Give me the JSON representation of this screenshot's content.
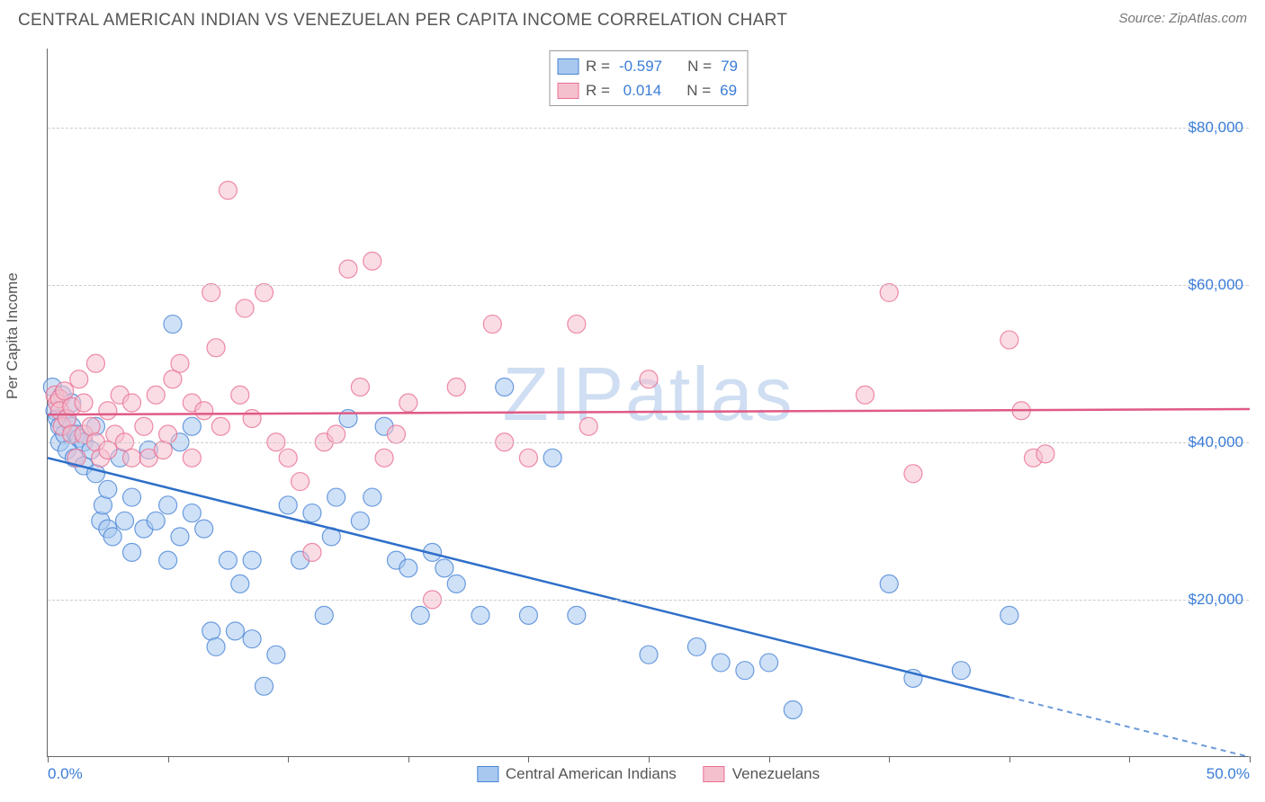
{
  "title": "CENTRAL AMERICAN INDIAN VS VENEZUELAN PER CAPITA INCOME CORRELATION CHART",
  "source": "Source: ZipAtlas.com",
  "ylabel": "Per Capita Income",
  "watermark": "ZIPatlas",
  "chart": {
    "type": "scatter",
    "xlim": [
      0,
      50
    ],
    "ylim": [
      0,
      90000
    ],
    "xtick_positions": [
      0,
      5,
      10,
      15,
      20,
      25,
      30,
      35,
      40,
      45,
      50
    ],
    "xtick_labels": {
      "0": "0.0%",
      "50": "50.0%"
    },
    "ytick_positions": [
      20000,
      40000,
      60000,
      80000
    ],
    "ytick_labels": [
      "$20,000",
      "$40,000",
      "$60,000",
      "$80,000"
    ],
    "background": "#ffffff",
    "grid_color": "#cccccc",
    "axis_color": "#666666",
    "label_color": "#3b7dd8",
    "marker_radius": 10,
    "marker_opacity": 0.55,
    "series": [
      {
        "name": "Central American Indians",
        "fill": "#a8c8f0",
        "stroke": "#4a85d6",
        "line_color": "#2e6fc9",
        "r": -0.597,
        "n": 79,
        "trend": {
          "x1": 0,
          "y1": 38000,
          "x2": 50,
          "y2": 0,
          "solid_until_x": 40
        },
        "points": [
          [
            0.2,
            47000
          ],
          [
            0.3,
            44000
          ],
          [
            0.4,
            43000
          ],
          [
            0.5,
            42000
          ],
          [
            0.5,
            40000
          ],
          [
            0.6,
            46000
          ],
          [
            0.7,
            41000
          ],
          [
            0.8,
            39000
          ],
          [
            0.8,
            43000
          ],
          [
            1.0,
            42000
          ],
          [
            1.0,
            45000
          ],
          [
            1.1,
            38000
          ],
          [
            1.2,
            41000
          ],
          [
            1.3,
            40500
          ],
          [
            1.5,
            40000
          ],
          [
            1.5,
            37000
          ],
          [
            1.8,
            39000
          ],
          [
            2.0,
            36000
          ],
          [
            2.0,
            42000
          ],
          [
            2.2,
            30000
          ],
          [
            2.3,
            32000
          ],
          [
            2.5,
            34000
          ],
          [
            2.5,
            29000
          ],
          [
            2.7,
            28000
          ],
          [
            3.0,
            38000
          ],
          [
            3.2,
            30000
          ],
          [
            3.5,
            33000
          ],
          [
            3.5,
            26000
          ],
          [
            4.0,
            29000
          ],
          [
            4.2,
            39000
          ],
          [
            4.5,
            30000
          ],
          [
            5.0,
            32000
          ],
          [
            5.0,
            25000
          ],
          [
            5.2,
            55000
          ],
          [
            5.5,
            40000
          ],
          [
            5.5,
            28000
          ],
          [
            6.0,
            31000
          ],
          [
            6.0,
            42000
          ],
          [
            6.5,
            29000
          ],
          [
            6.8,
            16000
          ],
          [
            7.0,
            14000
          ],
          [
            7.5,
            25000
          ],
          [
            7.8,
            16000
          ],
          [
            8.0,
            22000
          ],
          [
            8.5,
            25000
          ],
          [
            8.5,
            15000
          ],
          [
            9.0,
            9000
          ],
          [
            9.5,
            13000
          ],
          [
            10.0,
            32000
          ],
          [
            10.5,
            25000
          ],
          [
            11.0,
            31000
          ],
          [
            11.5,
            18000
          ],
          [
            11.8,
            28000
          ],
          [
            12.0,
            33000
          ],
          [
            12.5,
            43000
          ],
          [
            13.0,
            30000
          ],
          [
            13.5,
            33000
          ],
          [
            14.0,
            42000
          ],
          [
            14.5,
            25000
          ],
          [
            15.0,
            24000
          ],
          [
            15.5,
            18000
          ],
          [
            16.0,
            26000
          ],
          [
            16.5,
            24000
          ],
          [
            17.0,
            22000
          ],
          [
            18.0,
            18000
          ],
          [
            19.0,
            47000
          ],
          [
            20.0,
            18000
          ],
          [
            21.0,
            38000
          ],
          [
            22.0,
            18000
          ],
          [
            25.0,
            13000
          ],
          [
            27.0,
            14000
          ],
          [
            28.0,
            12000
          ],
          [
            29.0,
            11000
          ],
          [
            30.0,
            12000
          ],
          [
            31.0,
            6000
          ],
          [
            35.0,
            22000
          ],
          [
            36.0,
            10000
          ],
          [
            38.0,
            11000
          ],
          [
            40.0,
            18000
          ]
        ]
      },
      {
        "name": "Venezuelans",
        "fill": "#f5c0ce",
        "stroke": "#e86f92",
        "line_color": "#e05a85",
        "r": 0.014,
        "n": 69,
        "trend": {
          "x1": 0,
          "y1": 43500,
          "x2": 50,
          "y2": 44200,
          "solid_until_x": 50
        },
        "points": [
          [
            0.3,
            46000
          ],
          [
            0.4,
            45000
          ],
          [
            0.5,
            45500
          ],
          [
            0.5,
            44000
          ],
          [
            0.6,
            42000
          ],
          [
            0.7,
            46500
          ],
          [
            0.8,
            43000
          ],
          [
            1.0,
            44500
          ],
          [
            1.0,
            41000
          ],
          [
            1.2,
            38000
          ],
          [
            1.3,
            48000
          ],
          [
            1.5,
            41000
          ],
          [
            1.5,
            45000
          ],
          [
            1.8,
            42000
          ],
          [
            2.0,
            50000
          ],
          [
            2.0,
            40000
          ],
          [
            2.2,
            38000
          ],
          [
            2.5,
            39000
          ],
          [
            2.5,
            44000
          ],
          [
            2.8,
            41000
          ],
          [
            3.0,
            46000
          ],
          [
            3.2,
            40000
          ],
          [
            3.5,
            38000
          ],
          [
            3.5,
            45000
          ],
          [
            4.0,
            42000
          ],
          [
            4.2,
            38000
          ],
          [
            4.5,
            46000
          ],
          [
            4.8,
            39000
          ],
          [
            5.0,
            41000
          ],
          [
            5.2,
            48000
          ],
          [
            5.5,
            50000
          ],
          [
            6.0,
            45000
          ],
          [
            6.0,
            38000
          ],
          [
            6.5,
            44000
          ],
          [
            6.8,
            59000
          ],
          [
            7.0,
            52000
          ],
          [
            7.2,
            42000
          ],
          [
            7.5,
            72000
          ],
          [
            8.0,
            46000
          ],
          [
            8.2,
            57000
          ],
          [
            8.5,
            43000
          ],
          [
            9.0,
            59000
          ],
          [
            9.5,
            40000
          ],
          [
            10.0,
            38000
          ],
          [
            10.5,
            35000
          ],
          [
            11.0,
            26000
          ],
          [
            11.5,
            40000
          ],
          [
            12.0,
            41000
          ],
          [
            12.5,
            62000
          ],
          [
            13.0,
            47000
          ],
          [
            13.5,
            63000
          ],
          [
            14.0,
            38000
          ],
          [
            14.5,
            41000
          ],
          [
            15.0,
            45000
          ],
          [
            16.0,
            20000
          ],
          [
            17.0,
            47000
          ],
          [
            18.5,
            55000
          ],
          [
            19.0,
            40000
          ],
          [
            20.0,
            38000
          ],
          [
            22.0,
            55000
          ],
          [
            22.5,
            42000
          ],
          [
            25.0,
            48000
          ],
          [
            34.0,
            46000
          ],
          [
            35.0,
            59000
          ],
          [
            36.0,
            36000
          ],
          [
            40.0,
            53000
          ],
          [
            40.5,
            44000
          ],
          [
            41.0,
            38000
          ],
          [
            41.5,
            38500
          ]
        ]
      }
    ]
  },
  "legend_top_labels": {
    "r": "R =",
    "n": "N ="
  },
  "legend_bottom": [
    "Central American Indians",
    "Venezuelans"
  ]
}
